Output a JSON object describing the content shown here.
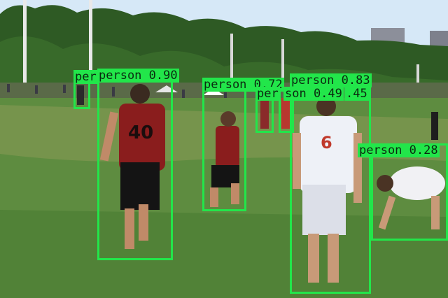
{
  "scene": {
    "description_icons": [
      "trees-background",
      "grass-field",
      "ultimate-frisbee-players",
      "spectator-tents"
    ]
  },
  "detections": [
    {
      "id": "d1",
      "label": "per",
      "class": "person",
      "score_text": "per"
    },
    {
      "id": "d2",
      "label": "person 0.90"
    },
    {
      "id": "d3",
      "label": "person 0.72"
    },
    {
      "id": "d4",
      "label": "per"
    },
    {
      "id": "d5",
      "label": "son 0.49"
    },
    {
      "id": "d6",
      "label": "person 0.83"
    },
    {
      "id": "d7",
      "label": ".45"
    },
    {
      "id": "d8",
      "label": "person 0.28"
    }
  ],
  "colors": {
    "box": "#22e64a",
    "sky": "#cfe3f5",
    "grass": "#5b8a3f",
    "trees": "#2f5a25"
  }
}
